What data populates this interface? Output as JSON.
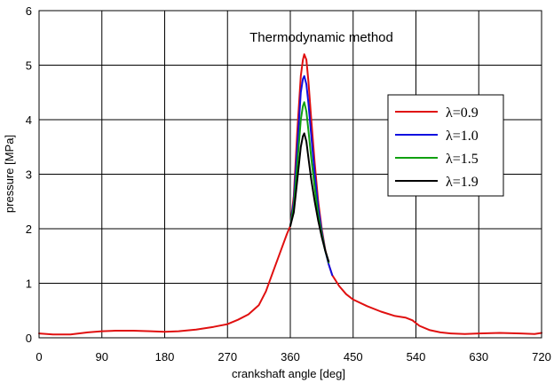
{
  "chart_data": {
    "type": "line",
    "title": "Thermodynamic method",
    "xlabel": "crankshaft angle [deg]",
    "ylabel": "pressure [MPa]",
    "xlim": [
      0,
      720
    ],
    "ylim": [
      0,
      6
    ],
    "x_ticks": [
      0,
      90,
      180,
      270,
      360,
      450,
      540,
      630,
      720
    ],
    "y_ticks": [
      0,
      1,
      2,
      3,
      4,
      5,
      6
    ],
    "x_tick_labels": [
      "0",
      "90",
      "180",
      "270",
      "360",
      "450",
      "540",
      "630",
      "720"
    ],
    "y_tick_labels": [
      "0",
      "1",
      "2",
      "3",
      "4",
      "5",
      "6"
    ],
    "grid": true,
    "legend_position": "right",
    "series": [
      {
        "name": "λ=0.9",
        "color": "#e01010",
        "x": [
          0,
          20,
          45,
          70,
          90,
          110,
          135,
          160,
          180,
          200,
          225,
          250,
          270,
          285,
          300,
          315,
          325,
          335,
          345,
          355,
          360,
          365,
          370,
          375,
          378,
          380,
          383,
          386,
          390,
          395,
          400,
          405,
          410,
          415,
          420,
          430,
          440,
          450,
          470,
          490,
          510,
          525,
          535,
          545,
          560,
          575,
          590,
          610,
          630,
          660,
          690,
          710,
          720
        ],
        "y": [
          0.08,
          0.06,
          0.06,
          0.1,
          0.12,
          0.13,
          0.13,
          0.12,
          0.11,
          0.12,
          0.15,
          0.2,
          0.25,
          0.33,
          0.43,
          0.6,
          0.85,
          1.2,
          1.55,
          1.9,
          2.05,
          2.6,
          3.8,
          4.8,
          5.1,
          5.2,
          5.1,
          4.7,
          4.0,
          3.2,
          2.5,
          2.0,
          1.62,
          1.35,
          1.15,
          0.95,
          0.8,
          0.7,
          0.58,
          0.48,
          0.4,
          0.37,
          0.32,
          0.22,
          0.14,
          0.1,
          0.08,
          0.07,
          0.08,
          0.09,
          0.08,
          0.07,
          0.09
        ]
      },
      {
        "name": "λ=1.0",
        "color": "#1010e0",
        "x": [
          360,
          365,
          370,
          375,
          378,
          380,
          383,
          386,
          390,
          395,
          400,
          405,
          410,
          415,
          420
        ],
        "y": [
          2.05,
          2.5,
          3.5,
          4.5,
          4.75,
          4.8,
          4.65,
          4.3,
          3.7,
          3.0,
          2.4,
          1.95,
          1.6,
          1.35,
          1.15
        ]
      },
      {
        "name": "λ=1.5",
        "color": "#10a010",
        "x": [
          360,
          365,
          370,
          375,
          378,
          380,
          383,
          386,
          390,
          395,
          400,
          405,
          410,
          415
        ],
        "y": [
          2.05,
          2.4,
          3.2,
          4.0,
          4.25,
          4.32,
          4.15,
          3.8,
          3.3,
          2.75,
          2.25,
          1.9,
          1.6,
          1.38
        ]
      },
      {
        "name": "λ=1.9",
        "color": "#000000",
        "x": [
          360,
          365,
          370,
          375,
          378,
          380,
          383,
          386,
          390,
          395,
          400,
          405,
          410,
          415
        ],
        "y": [
          2.05,
          2.3,
          2.9,
          3.5,
          3.7,
          3.75,
          3.6,
          3.3,
          2.9,
          2.5,
          2.15,
          1.85,
          1.6,
          1.4
        ]
      }
    ]
  }
}
